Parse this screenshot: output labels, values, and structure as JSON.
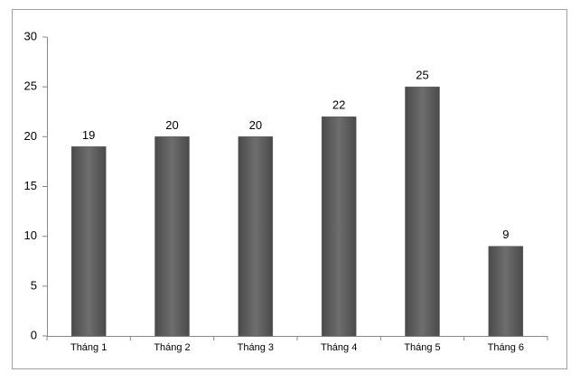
{
  "chart_data": {
    "type": "bar",
    "categories": [
      "Tháng 1",
      "Tháng 2",
      "Tháng 3",
      "Tháng 4",
      "Tháng 5",
      "Tháng 6"
    ],
    "values": [
      19,
      20,
      20,
      22,
      25,
      9
    ],
    "color": "#5e5e5e",
    "ylim": [
      0,
      30
    ],
    "yticks": [
      0,
      5,
      10,
      15,
      20,
      25,
      30
    ],
    "grid": false
  }
}
